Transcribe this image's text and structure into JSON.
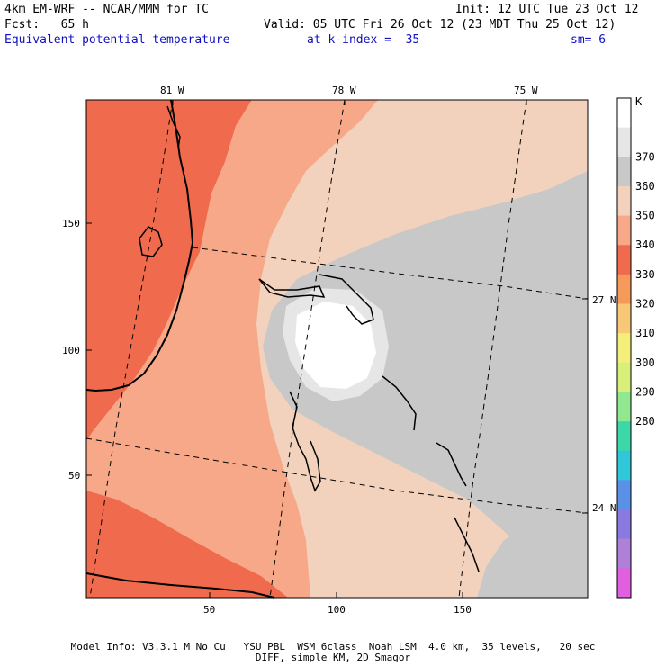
{
  "header": {
    "model": "4km EM-WRF -- NCAR/MMM for TC",
    "init": "Init: 12 UTC Tue 23 Oct 12",
    "fcst": "Fcst:   65 h",
    "valid": "Valid: 05 UTC Fri 26 Oct 12 (23 MDT Thu 25 Oct 12)",
    "field": "Equivalent potential temperature",
    "level": "at k-index =  35",
    "smoothing": "sm= 6"
  },
  "map": {
    "top_lon_labels": [
      "81 W",
      "78 W",
      "75 W"
    ],
    "right_lat_labels": [
      "27 N",
      "24 N"
    ],
    "left_ticks": [
      "150",
      "100",
      "50"
    ],
    "bottom_ticks": [
      "50",
      "100",
      "150"
    ]
  },
  "colorbar": {
    "unit": "K",
    "labels": [
      "370",
      "360",
      "350",
      "340",
      "330",
      "320",
      "310",
      "300",
      "290",
      "280"
    ],
    "colors": [
      "#ffffff",
      "#e6e6e6",
      "#c8c8c8",
      "#f2d2bc",
      "#f7a888",
      "#f06b4e",
      "#f59a5a",
      "#f8c878",
      "#f4ef7a",
      "#d8f07a",
      "#90e890",
      "#3ed8a8",
      "#30c8d8",
      "#5a90e8",
      "#8a7ae0",
      "#b080d8",
      "#e060e0"
    ]
  },
  "footer": {
    "line1": "Model Info: V3.3.1 M No Cu   YSU PBL  WSM 6class  Noah LSM  4.0 km,  35 levels,   20 sec",
    "line2": "DIFF, simple KM, 2D Smagor"
  }
}
